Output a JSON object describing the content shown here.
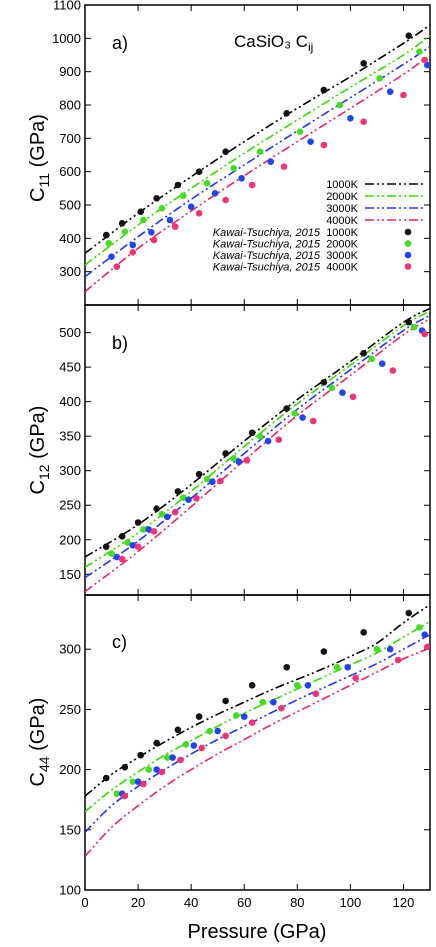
{
  "chart_data": [
    {
      "panel": "a)",
      "type": "line",
      "title": "CaSiO₃ C",
      "title_sub": "ij",
      "ylabel_main": "C",
      "ylabel_sub": "11",
      "ylabel_unit": " (GPa)",
      "xlim": [
        0,
        130
      ],
      "ylim": [
        200,
        1100
      ],
      "yticks": [
        300,
        400,
        500,
        600,
        700,
        800,
        900,
        1000,
        1100
      ],
      "xticks": [
        0,
        20,
        40,
        60,
        80,
        100,
        120
      ],
      "grid": false,
      "legend_placement": "right",
      "series": [
        {
          "name": "1000K",
          "color": "#000000",
          "dash": "9 3 2 3 2 3",
          "x": [
            0,
            20,
            40,
            60,
            80,
            100,
            120,
            130
          ],
          "y": [
            355,
            475,
            585,
            690,
            790,
            885,
            985,
            1040
          ]
        },
        {
          "name": "2000K",
          "color": "#33dd00",
          "dash": "9 3 2 3 2 3",
          "x": [
            0,
            20,
            40,
            60,
            80,
            100,
            120,
            130
          ],
          "y": [
            320,
            440,
            550,
            655,
            755,
            853,
            950,
            1008
          ]
        },
        {
          "name": "3000K",
          "color": "#2233ff",
          "dash": "9 3 2 3 2 3",
          "x": [
            0,
            20,
            40,
            60,
            80,
            100,
            120,
            130
          ],
          "y": [
            285,
            405,
            517,
            620,
            722,
            822,
            922,
            975
          ]
        },
        {
          "name": "4000K",
          "color": "#ee2266",
          "dash": "9 3 2 3 2 3",
          "x": [
            0,
            20,
            40,
            60,
            80,
            100,
            120,
            130
          ],
          "y": [
            240,
            370,
            482,
            588,
            690,
            790,
            892,
            950
          ]
        }
      ],
      "points": [
        {
          "name": "Kawai-Tsuchiya, 2015",
          "temp": "1000K",
          "color": "#111111",
          "x": [
            8,
            14,
            21,
            27,
            35,
            43,
            53,
            76,
            90,
            105,
            122
          ],
          "y": [
            410,
            445,
            480,
            520,
            560,
            600,
            660,
            775,
            845,
            925,
            1008
          ]
        },
        {
          "name": "Kawai-Tsuchiya, 2015",
          "temp": "2000K",
          "color": "#44dd22",
          "x": [
            9,
            15,
            22,
            29,
            37,
            46,
            56,
            66,
            81,
            96,
            111,
            126
          ],
          "y": [
            385,
            420,
            455,
            490,
            528,
            565,
            610,
            660,
            720,
            800,
            880,
            960
          ]
        },
        {
          "name": "Kawai-Tsuchiya, 2015",
          "temp": "3000K",
          "color": "#2244ee",
          "x": [
            10,
            18,
            25,
            32,
            40,
            49,
            59,
            70,
            85,
            100,
            115,
            129
          ],
          "y": [
            345,
            380,
            418,
            455,
            495,
            535,
            580,
            630,
            690,
            760,
            840,
            920
          ]
        },
        {
          "name": "Kawai-Tsuchiya, 2015",
          "temp": "4000K",
          "color": "#ee3377",
          "x": [
            12,
            18,
            26,
            34,
            43,
            53,
            63,
            75,
            90,
            105,
            120,
            128
          ],
          "y": [
            315,
            358,
            395,
            435,
            475,
            515,
            560,
            615,
            680,
            750,
            830,
            935
          ]
        }
      ]
    },
    {
      "panel": "b)",
      "type": "line",
      "ylabel_main": "C",
      "ylabel_sub": "12",
      "ylabel_unit": " (GPa)",
      "xlim": [
        0,
        130
      ],
      "ylim": [
        120,
        540
      ],
      "yticks": [
        150,
        200,
        250,
        300,
        350,
        400,
        450,
        500
      ],
      "xticks": [
        0,
        20,
        40,
        60,
        80,
        100,
        120
      ],
      "grid": false,
      "series": [
        {
          "name": "1000K",
          "color": "#000000",
          "dash": "9 3 2 3 2 3",
          "x": [
            0,
            20,
            40,
            60,
            80,
            100,
            120,
            130
          ],
          "y": [
            175,
            222,
            280,
            343,
            403,
            458,
            515,
            535
          ]
        },
        {
          "name": "2000K",
          "color": "#33dd00",
          "dash": "9 3 2 3 2 3",
          "x": [
            0,
            20,
            40,
            60,
            80,
            100,
            120,
            130
          ],
          "y": [
            160,
            210,
            270,
            335,
            397,
            453,
            510,
            531
          ]
        },
        {
          "name": "3000K",
          "color": "#2233ff",
          "dash": "9 3 2 3 2 3",
          "x": [
            0,
            20,
            40,
            60,
            80,
            100,
            120,
            130
          ],
          "y": [
            145,
            198,
            260,
            325,
            389,
            446,
            503,
            525
          ]
        },
        {
          "name": "4000K",
          "color": "#ee2266",
          "dash": "9 3 2 3 2 3",
          "x": [
            0,
            20,
            40,
            60,
            80,
            100,
            120,
            130
          ],
          "y": [
            125,
            183,
            248,
            315,
            380,
            438,
            497,
            520
          ]
        }
      ],
      "points": [
        {
          "name": "Kawai-Tsuchiya, 2015",
          "temp": "1000K",
          "color": "#111111",
          "x": [
            8,
            14,
            20,
            27,
            35,
            43,
            53,
            63,
            76,
            90,
            105,
            122
          ],
          "y": [
            190,
            205,
            225,
            245,
            270,
            295,
            325,
            355,
            390,
            428,
            470,
            515
          ]
        },
        {
          "name": "Kawai-Tsuchiya, 2015",
          "temp": "2000K",
          "color": "#44dd22",
          "x": [
            10,
            16,
            22,
            29,
            37,
            46,
            56,
            66,
            79,
            93,
            108,
            124
          ],
          "y": [
            180,
            196,
            215,
            237,
            261,
            288,
            318,
            350,
            383,
            420,
            462,
            508
          ]
        },
        {
          "name": "Kawai-Tsuchiya, 2015",
          "temp": "3000K",
          "color": "#2244ee",
          "x": [
            12,
            18,
            24,
            31,
            39,
            48,
            58,
            69,
            82,
            97,
            112,
            127
          ],
          "y": [
            175,
            192,
            215,
            233,
            258,
            284,
            313,
            343,
            377,
            413,
            455,
            503
          ]
        },
        {
          "name": "Kawai-Tsuchiya, 2015",
          "temp": "4000K",
          "color": "#ee3377",
          "x": [
            14,
            20,
            26,
            34,
            42,
            51,
            61,
            73,
            86,
            101,
            116,
            128
          ],
          "y": [
            172,
            190,
            212,
            240,
            260,
            285,
            315,
            345,
            372,
            407,
            445,
            498
          ]
        }
      ]
    },
    {
      "panel": "c)",
      "type": "line",
      "ylabel_main": "C",
      "ylabel_sub": "44",
      "ylabel_unit": " (GPa)",
      "xlabel": "Pressure (GPa)",
      "xlim": [
        0,
        130
      ],
      "ylim": [
        100,
        345
      ],
      "yticks": [
        100,
        150,
        200,
        250,
        300
      ],
      "xticks": [
        0,
        20,
        40,
        60,
        80,
        100,
        120
      ],
      "grid": false,
      "series": [
        {
          "name": "1000K",
          "color": "#000000",
          "dash": "9 3 2 3 2 3",
          "x": [
            0,
            10,
            20,
            30,
            40,
            50,
            60,
            70,
            80,
            90,
            100,
            110,
            120,
            130
          ],
          "y": [
            178,
            196,
            210,
            223,
            235,
            246,
            256,
            266,
            275,
            284,
            294,
            305,
            322,
            337
          ]
        },
        {
          "name": "2000K",
          "color": "#33dd00",
          "dash": "9 3 2 3 2 3",
          "x": [
            0,
            10,
            20,
            30,
            40,
            50,
            60,
            70,
            80,
            90,
            100,
            110,
            120,
            130
          ],
          "y": [
            165,
            183,
            198,
            212,
            224,
            236,
            247,
            257,
            267,
            277,
            287,
            297,
            310,
            323
          ]
        },
        {
          "name": "3000K",
          "color": "#2233ff",
          "dash": "9 3 2 3 2 3",
          "x": [
            0,
            10,
            20,
            30,
            40,
            50,
            60,
            70,
            80,
            90,
            100,
            110,
            120,
            130
          ],
          "y": [
            148,
            170,
            186,
            200,
            213,
            225,
            236,
            247,
            258,
            268,
            278,
            288,
            300,
            312
          ]
        },
        {
          "name": "4000K",
          "color": "#ee2266",
          "dash": "9 3 2 3 2 3",
          "x": [
            0,
            10,
            20,
            30,
            40,
            50,
            60,
            70,
            80,
            90,
            100,
            110,
            120,
            130
          ],
          "y": [
            128,
            152,
            170,
            186,
            200,
            213,
            225,
            237,
            248,
            259,
            270,
            281,
            292,
            301
          ]
        }
      ],
      "points": [
        {
          "name": "Kawai-Tsuchiya, 2015",
          "temp": "1000K",
          "color": "#111111",
          "x": [
            8,
            15,
            21,
            27,
            35,
            43,
            53,
            63,
            76,
            90,
            105,
            122
          ],
          "y": [
            193,
            202,
            212,
            222,
            233,
            244,
            257,
            270,
            285,
            298,
            314,
            330
          ]
        },
        {
          "name": "Kawai-Tsuchiya, 2015",
          "temp": "2000K",
          "color": "#44dd22",
          "x": [
            12,
            18,
            24,
            31,
            38,
            47,
            57,
            67,
            80,
            95,
            110,
            126
          ],
          "y": [
            180,
            190,
            200,
            210,
            221,
            232,
            245,
            256,
            270,
            285,
            300,
            318
          ]
        },
        {
          "name": "Kawai-Tsuchiya, 2015",
          "temp": "3000K",
          "color": "#2244ee",
          "x": [
            14,
            20,
            27,
            33,
            41,
            50,
            60,
            71,
            84,
            99,
            115,
            128
          ],
          "y": [
            180,
            190,
            200,
            210,
            220,
            232,
            244,
            256,
            270,
            285,
            300,
            312
          ]
        },
        {
          "name": "Kawai-Tsuchiya, 2015",
          "temp": "4000K",
          "color": "#ee3377",
          "x": [
            15,
            22,
            29,
            36,
            44,
            53,
            63,
            74,
            87,
            102,
            118,
            129
          ],
          "y": [
            178,
            188,
            198,
            208,
            218,
            228,
            239,
            251,
            263,
            276,
            291,
            302
          ]
        }
      ]
    }
  ],
  "legend": {
    "line_entries": [
      "1000K",
      "2000K",
      "3000K",
      "4000K"
    ],
    "point_source": "Kawai-Tsuchiya, 2015",
    "point_temps": [
      "1000K",
      "2000K",
      "3000K",
      "4000K"
    ]
  }
}
